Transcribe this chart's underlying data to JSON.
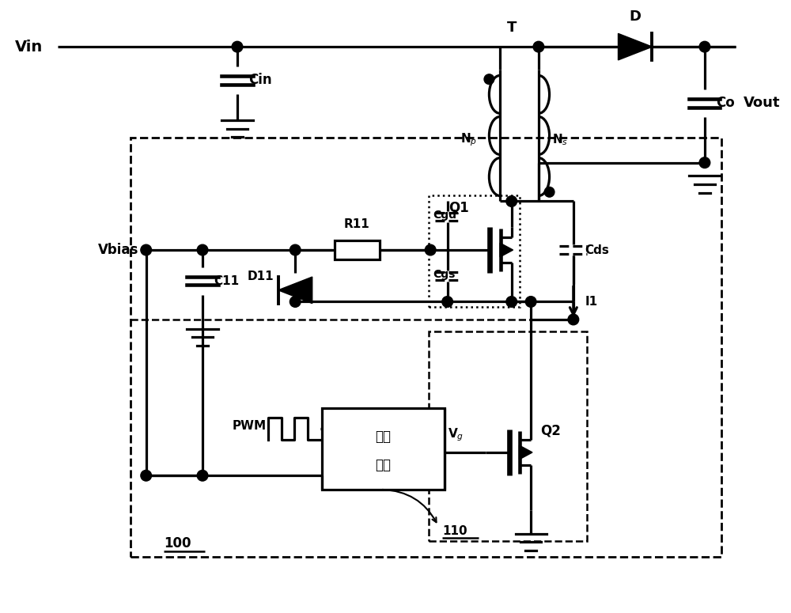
{
  "bg": "#ffffff",
  "lc": "#000000",
  "lw": 2.3,
  "fw": 10.0,
  "fh": 7.75,
  "xlim": [
    0,
    10
  ],
  "ylim": [
    0,
    7.75
  ]
}
